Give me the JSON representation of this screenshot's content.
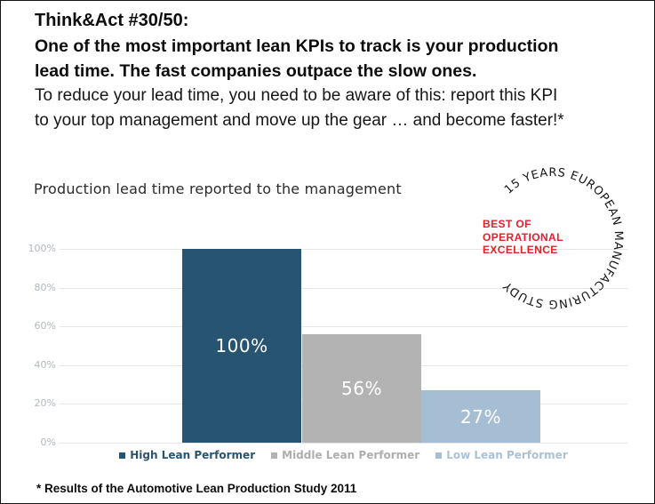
{
  "slide": {
    "title": "Think&Act #30/50:",
    "headline_bold_lines": [
      "One of the most important lean KPIs to track is your production",
      "lead time. The fast companies outpace the slow ones."
    ],
    "headline_regular_lines": [
      "To reduce your lead time, you need to be aware of this: report this KPI",
      "to your top management and move up the gear … and become faster!*"
    ],
    "footnote": "* Results of the Automotive Lean Production Study 2011"
  },
  "badge": {
    "ring_text": "15 YEARS EUROPEAN MANUFACTURING STUDY",
    "inner_lines": [
      "BEST OF",
      "OPERATIONAL",
      "EXCELLENCE"
    ],
    "ring_color": "#161616",
    "inner_color": "#e6202a"
  },
  "chart_data": {
    "type": "bar",
    "title": "Production lead time reported to the management",
    "categories": [
      "High Lean Performer",
      "Middle Lean Performer",
      "Low Lean Performer"
    ],
    "values": [
      100,
      56,
      27
    ],
    "value_labels": [
      "100%",
      "56%",
      "27%"
    ],
    "bar_colors": [
      "#275471",
      "#b3b3b3",
      "#a6bed3"
    ],
    "legend_text_colors": [
      "#275471",
      "#aeaeae",
      "#a9c2d8"
    ],
    "y_ticks": [
      "100%",
      "80%",
      "60%",
      "40%",
      "20%",
      "0%"
    ],
    "y_tick_values": [
      100,
      80,
      60,
      40,
      20,
      0
    ],
    "ylim": [
      0,
      100
    ],
    "grid": true,
    "legend_position": "bottom",
    "gridline_color": "#e6e6e6",
    "tick_color": "#b2b8bd",
    "value_label_color": "#ffffff"
  }
}
